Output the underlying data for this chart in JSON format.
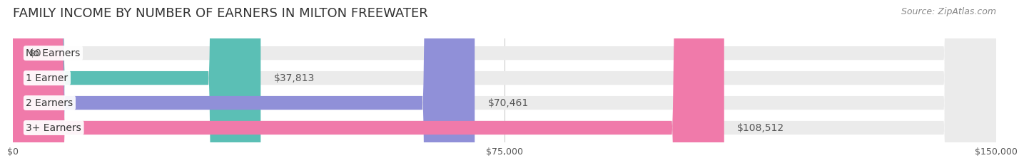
{
  "title": "FAMILY INCOME BY NUMBER OF EARNERS IN MILTON FREEWATER",
  "source": "Source: ZipAtlas.com",
  "categories": [
    "No Earners",
    "1 Earner",
    "2 Earners",
    "3+ Earners"
  ],
  "values": [
    0,
    37813,
    70461,
    108512
  ],
  "bar_colors": [
    "#c9a0c8",
    "#5bbfb5",
    "#9090d8",
    "#f07aaa"
  ],
  "bar_bg_color": "#ebebeb",
  "value_labels": [
    "$0",
    "$37,813",
    "$70,461",
    "$108,512"
  ],
  "x_tick_labels": [
    "$0",
    "$75,000",
    "$150,000"
  ],
  "x_tick_values": [
    0,
    75000,
    150000
  ],
  "xlim": [
    0,
    150000
  ],
  "background_color": "#ffffff",
  "title_fontsize": 13,
  "label_fontsize": 10,
  "value_fontsize": 10,
  "tick_fontsize": 9,
  "source_fontsize": 9
}
